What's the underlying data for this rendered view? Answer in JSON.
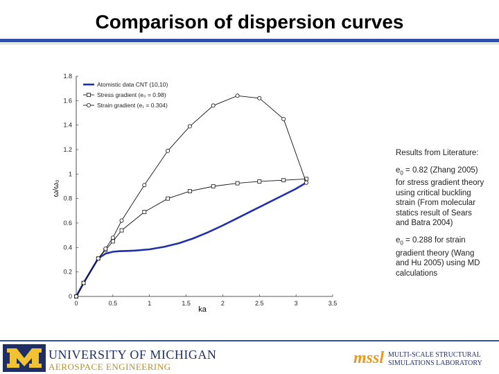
{
  "slide": {
    "title": "Comparison of dispersion curves"
  },
  "chart_data": {
    "type": "line",
    "xlabel": "ka",
    "ylabel": "ω/ω₀",
    "xlim": [
      0,
      3.5
    ],
    "ylim": [
      0,
      1.8
    ],
    "xticks": [
      "0",
      "0.5",
      "1",
      "1.5",
      "2",
      "2.5",
      "3",
      "3.5"
    ],
    "yticks": [
      "0",
      "0.2",
      "0.4",
      "0.6",
      "0.8",
      "1",
      "1.2",
      "1.4",
      "1.6",
      "1.8"
    ],
    "grid": false,
    "legend_position": "top-left",
    "series": [
      {
        "name": "Atomistic data CNT (10,10)",
        "color": "#1f2fa8",
        "marker": "none",
        "x": [
          0,
          0.1,
          0.2,
          0.3,
          0.4,
          0.5,
          0.6,
          0.7,
          0.8,
          0.9,
          1.0,
          1.2,
          1.4,
          1.6,
          1.8,
          2.0,
          2.2,
          2.4,
          2.6,
          2.8,
          3.0,
          3.14
        ],
        "y": [
          0,
          0.11,
          0.21,
          0.31,
          0.35,
          0.365,
          0.37,
          0.372,
          0.375,
          0.38,
          0.385,
          0.405,
          0.435,
          0.475,
          0.525,
          0.58,
          0.64,
          0.7,
          0.76,
          0.82,
          0.88,
          0.93
        ]
      },
      {
        "name": "Stress gradient (e₀ = 0.98)",
        "color": "#111111",
        "marker": "square",
        "x": [
          0,
          0.1,
          0.3,
          0.4,
          0.5,
          0.62,
          0.93,
          1.25,
          1.55,
          1.87,
          2.2,
          2.5,
          2.83,
          3.14
        ],
        "y": [
          0,
          0.11,
          0.31,
          0.38,
          0.45,
          0.54,
          0.69,
          0.8,
          0.86,
          0.9,
          0.925,
          0.94,
          0.95,
          0.96
        ]
      },
      {
        "name": "Strain gradient (e₁ = 0.304)",
        "color": "#111111",
        "marker": "circle",
        "x": [
          0,
          0.1,
          0.3,
          0.4,
          0.5,
          0.62,
          0.93,
          1.25,
          1.55,
          1.87,
          2.2,
          2.5,
          2.83,
          3.14
        ],
        "y": [
          0,
          0.11,
          0.31,
          0.39,
          0.48,
          0.62,
          0.91,
          1.19,
          1.39,
          1.56,
          1.64,
          1.62,
          1.45,
          0.93
        ]
      }
    ]
  },
  "literature": {
    "heading": "Results from Literature:",
    "item1_e": "e",
    "item1_sub": "0",
    "item1_text": " =  0.82 (Zhang 2005) for stress gradient theory using critical buckling strain (From molecular statics result of Sears and Batra 2004)",
    "item2_e": "e",
    "item2_sub": "0",
    "item2_text": " = 0.288 for strain gradient theory (Wang and Hu 2005) using MD calculations"
  },
  "footer": {
    "university_line1": "UNIVERSITY OF MICHIGAN",
    "university_line2": "AEROSPACE ENGINEERING",
    "lab_logo": "mssl",
    "lab_line1": "MULTI-SCALE STRUCTURAL",
    "lab_line2": "SIMULATIONS LABORATORY",
    "brand_color": "#1f2f66",
    "accent_color": "#e89a1a"
  }
}
